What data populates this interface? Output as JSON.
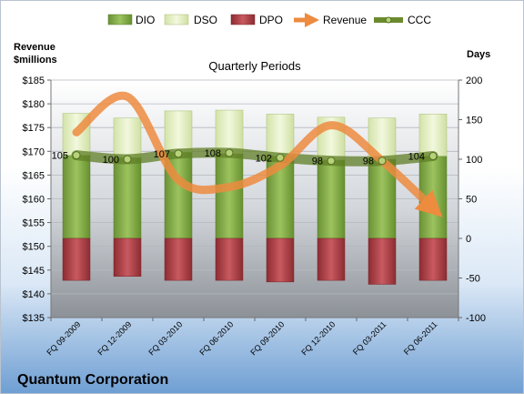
{
  "company": "Quantum Corporation",
  "chart_data": {
    "type": "bar",
    "title": "Quarterly Periods",
    "y_left_label": [
      "Revenue",
      "$millions"
    ],
    "y_right_label": "Days",
    "categories": [
      "FQ 09-2009",
      "FQ 12-2009",
      "FQ 03-2010",
      "FQ 06-2010",
      "FQ 09-2010",
      "FQ 12-2010",
      "FQ 03-2011",
      "FQ 06-2011"
    ],
    "y_left_ticks": [
      "$185",
      "$180",
      "$175",
      "$170",
      "$165",
      "$160",
      "$155",
      "$150",
      "$145",
      "$140",
      "$135"
    ],
    "y_left_range": [
      135,
      185
    ],
    "y_right_ticks": [
      "200",
      "150",
      "100",
      "50",
      "0",
      "-50",
      "-100"
    ],
    "y_right_range": [
      -100,
      200
    ],
    "legend_position": "top",
    "grid": true,
    "series": [
      {
        "name": "DIO",
        "kind": "stacked-bar",
        "axis": "right",
        "color": "#7fa846",
        "values": [
          105,
          102,
          109,
          107,
          104,
          99,
          100,
          104
        ]
      },
      {
        "name": "DSO",
        "kind": "stacked-bar",
        "axis": "right",
        "color": "#e2edc4",
        "values": [
          53,
          50,
          52,
          55,
          53,
          54,
          52,
          53
        ]
      },
      {
        "name": "DPO",
        "kind": "negative-bar",
        "axis": "right",
        "color": "#a33a40",
        "values": [
          -53,
          -48,
          -53,
          -53,
          -55,
          -53,
          -58,
          -53
        ]
      },
      {
        "name": "Revenue",
        "kind": "smooth-arrow-line",
        "axis": "left",
        "color": "#ed8b3f",
        "values": [
          174,
          181.5,
          164,
          162.5,
          167,
          175.5,
          168,
          158
        ]
      },
      {
        "name": "CCC",
        "kind": "line-markers",
        "axis": "right",
        "color": "#6b8a2e",
        "values": [
          105,
          100,
          107,
          108,
          102,
          98,
          98,
          104
        ],
        "labels": [
          "105",
          "100",
          "107",
          "108",
          "102",
          "98",
          "98",
          "104"
        ]
      }
    ]
  }
}
